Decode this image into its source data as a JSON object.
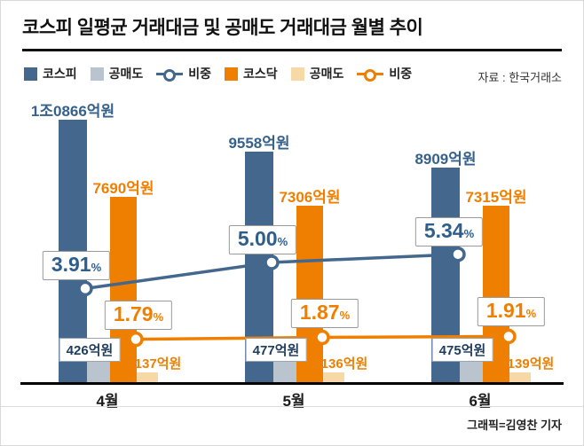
{
  "page": {
    "title": "코스피 일평균 거래대금 및 공매도 거래대금 월별 추이",
    "source": "자료 : 한국거래소",
    "credit": "그래픽=김영찬 기자"
  },
  "legend": [
    {
      "label": "코스피",
      "type": "square",
      "color": "#44678d"
    },
    {
      "label": "공매도",
      "type": "square",
      "color": "#b9c4cf"
    },
    {
      "label": "비중",
      "type": "line",
      "color": "#44678d"
    },
    {
      "label": "코스닥",
      "type": "square",
      "color": "#ee7f00"
    },
    {
      "label": "공매도",
      "type": "square",
      "color": "#f7d9a8"
    },
    {
      "label": "비중",
      "type": "line",
      "color": "#ee7f00"
    }
  ],
  "chart_data": {
    "type": "bar",
    "categories": [
      "4월",
      "5월",
      "6월"
    ],
    "unit": "억원",
    "ylim": [
      0,
      11000
    ],
    "bar_series": [
      {
        "name": "코스피",
        "color": "#44678d",
        "values": [
          10866,
          9558,
          8909
        ],
        "labels": [
          "1조0866억원",
          "9558억원",
          "8909억원"
        ]
      },
      {
        "name": "코스피-공매도",
        "color": "#b9c4cf",
        "values": [
          426,
          477,
          475
        ],
        "labels": [
          "426억원",
          "477억원",
          "475억원"
        ]
      },
      {
        "name": "코스닥",
        "color": "#ee7f00",
        "values": [
          7690,
          7306,
          7315
        ],
        "labels": [
          "7690억원",
          "7306억원",
          "7315억원"
        ]
      },
      {
        "name": "코스닥-공매도",
        "color": "#f7d9a8",
        "values": [
          137,
          136,
          139
        ],
        "labels": [
          "137억원",
          "136억원",
          "139억원"
        ]
      }
    ],
    "line_series": [
      {
        "name": "코스피-공매도-비중",
        "color": "#44678d",
        "values": [
          3.91,
          5.0,
          5.34
        ],
        "labels": [
          "3.91",
          "5.00",
          "5.34"
        ],
        "unit": "%"
      },
      {
        "name": "코스닥-공매도-비중",
        "color": "#ee7f00",
        "values": [
          1.79,
          1.87,
          1.91
        ],
        "labels": [
          "1.79",
          "1.87",
          "1.91"
        ],
        "unit": "%"
      }
    ]
  }
}
